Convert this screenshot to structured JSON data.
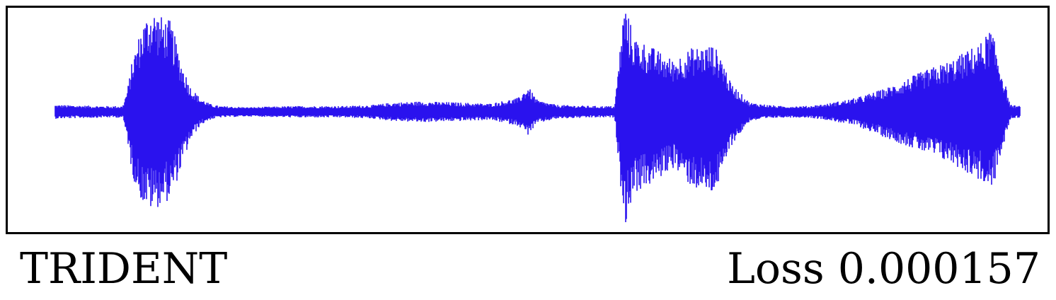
{
  "chart_data": {
    "type": "waveform",
    "title": "",
    "xlabel": "",
    "ylabel": "",
    "method": "TRIDENT",
    "loss": {
      "label": "Loss",
      "value": "0.000157"
    },
    "color": "#2a12ee",
    "frame_color": "#000000",
    "background": "#ffffff",
    "ylim": [
      -1,
      1
    ],
    "xlim": [
      0,
      1
    ],
    "grid": false,
    "legend": "none",
    "envelope": {
      "x": [
        0.0,
        0.05,
        0.07,
        0.075,
        0.08,
        0.09,
        0.1,
        0.11,
        0.12,
        0.13,
        0.14,
        0.15,
        0.16,
        0.17,
        0.2,
        0.25,
        0.3,
        0.33,
        0.35,
        0.38,
        0.42,
        0.45,
        0.48,
        0.49,
        0.5,
        0.52,
        0.56,
        0.58,
        0.59,
        0.6,
        0.62,
        0.63,
        0.64,
        0.66,
        0.68,
        0.69,
        0.7,
        0.72,
        0.75,
        0.78,
        0.8,
        0.83,
        0.86,
        0.9,
        0.93,
        0.96,
        0.97,
        0.98,
        0.99,
        1.0
      ],
      "upper": [
        0.06,
        0.05,
        0.05,
        0.2,
        0.45,
        0.75,
        0.9,
        0.82,
        0.78,
        0.45,
        0.22,
        0.12,
        0.07,
        0.05,
        0.04,
        0.05,
        0.05,
        0.06,
        0.08,
        0.09,
        0.08,
        0.07,
        0.12,
        0.22,
        0.1,
        0.06,
        0.05,
        0.05,
        0.95,
        0.65,
        0.55,
        0.5,
        0.45,
        0.55,
        0.58,
        0.5,
        0.25,
        0.08,
        0.05,
        0.05,
        0.07,
        0.12,
        0.2,
        0.35,
        0.45,
        0.6,
        0.72,
        0.4,
        0.06,
        0.05
      ],
      "lower": [
        -0.06,
        -0.05,
        -0.05,
        -0.25,
        -0.55,
        -0.78,
        -0.85,
        -0.8,
        -0.75,
        -0.5,
        -0.25,
        -0.12,
        -0.07,
        -0.05,
        -0.04,
        -0.05,
        -0.05,
        -0.06,
        -0.08,
        -0.09,
        -0.08,
        -0.07,
        -0.12,
        -0.2,
        -0.1,
        -0.06,
        -0.05,
        -0.05,
        -1.0,
        -0.7,
        -0.62,
        -0.55,
        -0.48,
        -0.65,
        -0.72,
        -0.6,
        -0.3,
        -0.08,
        -0.05,
        -0.05,
        -0.07,
        -0.12,
        -0.22,
        -0.35,
        -0.45,
        -0.6,
        -0.72,
        -0.4,
        -0.06,
        -0.05
      ]
    }
  }
}
